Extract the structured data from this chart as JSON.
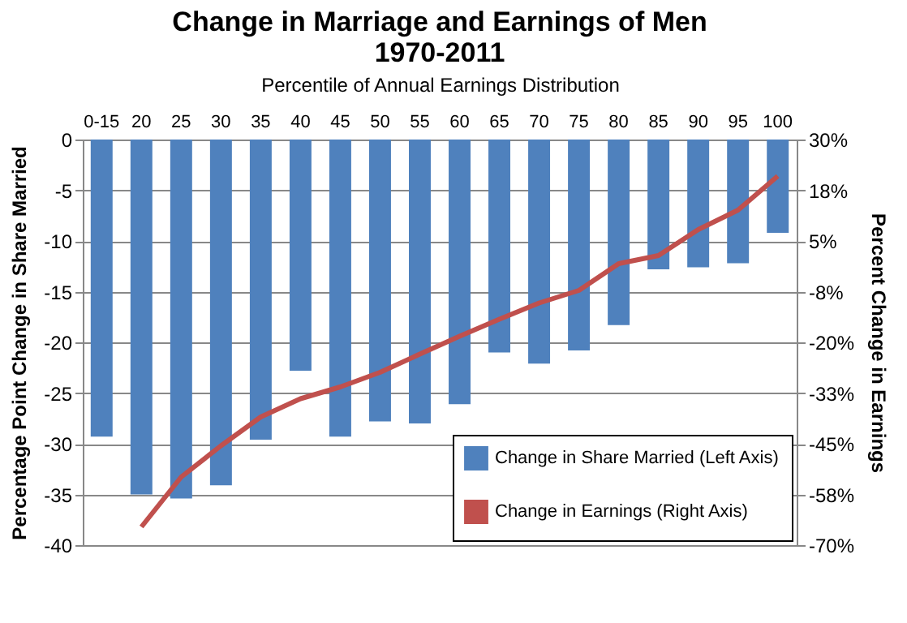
{
  "chart_data": {
    "type": "bar",
    "title": "Change in Marriage and Earnings of Men\n1970-2011",
    "xlabel": "Percentile of Annual Earnings Distribution",
    "ylabel": "Percentage Point Change in Share Married",
    "y2label": "Percent Change in Earnings",
    "categories": [
      "0-15",
      "20",
      "25",
      "30",
      "35",
      "40",
      "45",
      "50",
      "55",
      "60",
      "65",
      "70",
      "75",
      "80",
      "85",
      "90",
      "95",
      "100"
    ],
    "series": [
      {
        "name": "Change in Share Married (Left Axis)",
        "color": "#4f81bd",
        "values": [
          -29.3,
          -35.0,
          -35.4,
          -34.1,
          -29.6,
          -22.8,
          -29.3,
          -27.8,
          -28.0,
          -26.1,
          -21.0,
          -22.1,
          -20.8,
          -18.3,
          -12.8,
          -12.6,
          -12.2,
          -9.2
        ]
      },
      {
        "name": "Change in Earnings (Right Axis)",
        "type": "line",
        "axis": "y2",
        "color": "#c0504d",
        "values": [
          null,
          -65.5,
          -53.2,
          -45.5,
          -38.4,
          -33.9,
          -31.0,
          -27.4,
          -22.9,
          -18.5,
          -14.3,
          -10.3,
          -7.2,
          -0.6,
          1.4,
          7.8,
          12.6,
          21.0
        ]
      }
    ],
    "ylim": [
      -40,
      0
    ],
    "yticks": [
      0,
      -5,
      -10,
      -15,
      -20,
      -25,
      -30,
      -35,
      -40
    ],
    "y2lim": [
      -70,
      30
    ],
    "y2ticks": [
      {
        "value": 30,
        "label": "30%"
      },
      {
        "value": 17.5,
        "label": "18%"
      },
      {
        "value": 5,
        "label": "5%"
      },
      {
        "value": -7.5,
        "label": "-8%"
      },
      {
        "value": -20,
        "label": "-20%"
      },
      {
        "value": -32.5,
        "label": "-33%"
      },
      {
        "value": -45,
        "label": "-45%"
      },
      {
        "value": -57.5,
        "label": "-58%"
      },
      {
        "value": -70,
        "label": "-70%"
      }
    ],
    "grid": "y",
    "legend": "bottom right",
    "marker": "none",
    "line_style": "solid"
  }
}
